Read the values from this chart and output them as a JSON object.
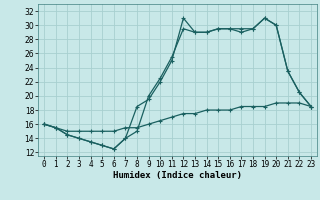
{
  "xlabel": "Humidex (Indice chaleur)",
  "bg_color": "#c8e8e8",
  "grid_color": "#a8d0d0",
  "line_color": "#1a6060",
  "xlim": [
    -0.5,
    23.5
  ],
  "ylim": [
    11.5,
    33.0
  ],
  "yticks": [
    12,
    14,
    16,
    18,
    20,
    22,
    24,
    26,
    28,
    30,
    32
  ],
  "xticks": [
    0,
    1,
    2,
    3,
    4,
    5,
    6,
    7,
    8,
    9,
    10,
    11,
    12,
    13,
    14,
    15,
    16,
    17,
    18,
    19,
    20,
    21,
    22,
    23
  ],
  "line1_x": [
    0,
    1,
    2,
    3,
    4,
    5,
    6,
    7,
    8,
    9,
    10,
    11,
    12,
    13,
    14,
    15,
    16,
    17,
    18,
    19,
    20,
    21,
    22,
    23
  ],
  "line1_y": [
    16.0,
    15.5,
    14.5,
    14.0,
    13.5,
    13.0,
    12.5,
    14.0,
    18.5,
    19.5,
    22.0,
    25.0,
    31.0,
    29.0,
    29.0,
    29.5,
    29.5,
    29.0,
    29.5,
    31.0,
    30.0,
    23.5,
    20.5,
    18.5
  ],
  "line2_x": [
    0,
    1,
    2,
    3,
    4,
    5,
    6,
    7,
    8,
    9,
    10,
    11,
    12,
    13,
    14,
    15,
    16,
    17,
    18,
    19,
    20,
    21,
    22,
    23
  ],
  "line2_y": [
    16.0,
    15.5,
    14.5,
    14.0,
    13.5,
    13.0,
    12.5,
    14.0,
    15.0,
    20.0,
    22.5,
    25.5,
    29.5,
    29.0,
    29.0,
    29.5,
    29.5,
    29.5,
    29.5,
    31.0,
    30.0,
    23.5,
    20.5,
    18.5
  ],
  "line3_x": [
    0,
    1,
    2,
    3,
    4,
    5,
    6,
    7,
    8,
    9,
    10,
    11,
    12,
    13,
    14,
    15,
    16,
    17,
    18,
    19,
    20,
    21,
    22,
    23
  ],
  "line3_y": [
    16.0,
    15.5,
    15.0,
    15.0,
    15.0,
    15.0,
    15.0,
    15.5,
    15.5,
    16.0,
    16.5,
    17.0,
    17.5,
    17.5,
    18.0,
    18.0,
    18.0,
    18.5,
    18.5,
    18.5,
    19.0,
    19.0,
    19.0,
    18.5
  ],
  "xlabel_fontsize": 6.5,
  "tick_fontsize": 5.5,
  "linewidth": 0.9,
  "markersize": 3.5
}
